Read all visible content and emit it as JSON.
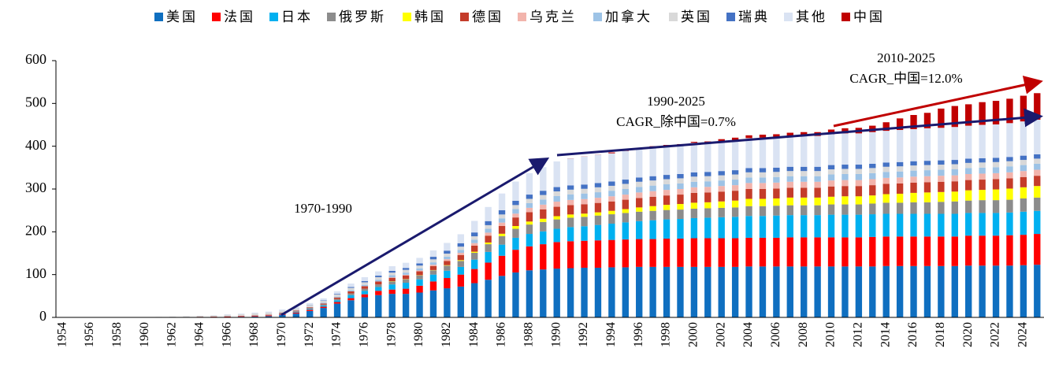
{
  "chart_data": {
    "type": "stacked_bar",
    "legend": "top",
    "categories": [
      "1954",
      null,
      "1956",
      null,
      "1958",
      null,
      "1960",
      null,
      "1962",
      null,
      "1964",
      null,
      "1966",
      null,
      "1968",
      null,
      "1970",
      null,
      "1972",
      null,
      "1974",
      null,
      "1976",
      null,
      "1978",
      null,
      "1980",
      null,
      "1982",
      null,
      "1984",
      null,
      "1986",
      null,
      "1988",
      null,
      "1990",
      null,
      "1992",
      null,
      "1994",
      null,
      "1996",
      null,
      "1998",
      null,
      "2000",
      null,
      "2002",
      null,
      "2004",
      null,
      "2006",
      null,
      "2008",
      null,
      "2010",
      null,
      "2012",
      null,
      "2014",
      null,
      "2016",
      null,
      "2018",
      null,
      "2020",
      null,
      "2022",
      null,
      "2024",
      null
    ],
    "ylim": [
      0,
      600
    ],
    "yticks": [
      0,
      100,
      200,
      300,
      400,
      500,
      600
    ],
    "annotations": [
      "1970-1990",
      "1990-2025",
      "CAGR_除中国=0.7%",
      "2010-2025",
      "CAGR_中国=12.0%"
    ],
    "series": [
      {
        "name": "美国",
        "color": "#0f6fc0",
        "values": [
          0,
          0,
          0,
          0,
          0.1,
          0.1,
          0.2,
          0.3,
          0.5,
          0.6,
          0.8,
          0.9,
          1,
          1.5,
          2,
          3,
          6,
          9,
          15,
          22,
          32,
          40,
          47,
          52,
          55,
          55,
          58,
          63,
          68,
          72,
          80,
          88,
          97,
          105,
          110,
          112,
          114,
          115,
          116,
          116,
          117,
          117,
          118,
          118,
          118,
          118,
          118,
          118,
          118,
          118,
          119,
          119,
          119,
          119,
          119,
          119,
          119,
          119,
          119,
          119,
          120,
          120,
          120,
          120,
          120,
          120,
          121,
          121,
          121,
          121,
          122,
          123
        ]
      },
      {
        "name": "法国",
        "color": "#ff0000",
        "values": [
          0,
          0,
          0,
          0,
          0,
          0,
          0.1,
          0.1,
          0.2,
          0.3,
          0.5,
          0.7,
          1,
          1.2,
          1.5,
          1.8,
          2,
          2.5,
          3,
          3,
          4,
          5,
          7,
          10,
          10,
          12,
          16,
          21,
          24,
          28,
          33,
          40,
          47,
          53,
          56,
          59,
          62,
          63,
          63,
          64,
          64,
          65,
          65,
          65,
          66,
          66,
          67,
          67,
          67,
          67,
          67,
          67,
          67,
          68,
          68,
          68,
          68,
          68,
          68,
          69,
          69,
          69,
          69,
          69,
          69,
          69,
          70,
          70,
          70,
          71,
          71,
          72
        ]
      },
      {
        "name": "日本",
        "color": "#00b0f0",
        "values": [
          0,
          0,
          0,
          0,
          0,
          0,
          0,
          0,
          0,
          0,
          0,
          0,
          0.2,
          0.2,
          0.2,
          0.2,
          1,
          1.5,
          2,
          3,
          4,
          7,
          8,
          9,
          12,
          14,
          15,
          16,
          17,
          18,
          22,
          25,
          26,
          28,
          29,
          30,
          31,
          33,
          34,
          36,
          38,
          40,
          42,
          44,
          45,
          46,
          47,
          48,
          49,
          50,
          51,
          51,
          52,
          52,
          52,
          52,
          53,
          53,
          53,
          53,
          53,
          53,
          53,
          53,
          53,
          53,
          53,
          53,
          53,
          53,
          54,
          54
        ]
      },
      {
        "name": "俄罗斯",
        "color": "#8c8c8c",
        "values": [
          0,
          0,
          0,
          0,
          0,
          0,
          0,
          0,
          0,
          0.1,
          0.3,
          0.4,
          0.5,
          0.6,
          0.8,
          1,
          1,
          1.2,
          1.5,
          2,
          3,
          4,
          5,
          6,
          7,
          8,
          9,
          10,
          12,
          14,
          16,
          18,
          20,
          21,
          22,
          22,
          22,
          22,
          22,
          22,
          22,
          22,
          22,
          22,
          22,
          22,
          22,
          22,
          22,
          22,
          23,
          23,
          23,
          23,
          23,
          23,
          24,
          24,
          24,
          25,
          26,
          26,
          27,
          27,
          28,
          29,
          29,
          30,
          30,
          30,
          31,
          31
        ]
      },
      {
        "name": "韩国",
        "color": "#ffff00",
        "values": [
          0,
          0,
          0,
          0,
          0,
          0,
          0,
          0,
          0,
          0,
          0,
          0,
          0,
          0,
          0,
          0,
          0,
          0,
          0,
          0,
          0,
          0,
          0,
          0,
          0.6,
          0.6,
          0.6,
          0.6,
          1,
          1.8,
          2.5,
          4,
          5.5,
          6.5,
          7,
          7.5,
          7.5,
          7.5,
          7.5,
          7.5,
          8,
          9,
          10,
          11,
          12,
          13,
          14,
          14,
          15,
          16,
          17,
          17,
          17,
          18,
          18,
          18,
          18,
          19,
          19,
          19,
          20,
          21,
          22,
          23,
          23,
          23,
          24,
          24,
          25,
          26,
          26,
          27
        ]
      },
      {
        "name": "德国",
        "color": "#c43c2a",
        "values": [
          0,
          0,
          0,
          0,
          0,
          0,
          0,
          0,
          0.02,
          0.02,
          0.05,
          0.1,
          0.3,
          0.3,
          0.5,
          0.7,
          1,
          1.5,
          2,
          2.5,
          3.5,
          5,
          6,
          7,
          8,
          8.5,
          9,
          9.5,
          10,
          12,
          14,
          16,
          18,
          20,
          22,
          22,
          22,
          22,
          22,
          22,
          22,
          22,
          22,
          22,
          22,
          22,
          23,
          23,
          23,
          23,
          23,
          23,
          23,
          23,
          23,
          23,
          24,
          24,
          24,
          24,
          24,
          24,
          24,
          24,
          24,
          24,
          24,
          24,
          24,
          24,
          24,
          24
        ]
      },
      {
        "name": "乌克兰",
        "color": "#f2b4ac",
        "values": [
          0,
          0,
          0,
          0,
          0,
          0,
          0,
          0,
          0,
          0,
          0,
          0,
          0,
          0,
          0,
          0,
          0,
          0,
          0,
          0,
          0,
          0,
          0,
          0,
          1,
          1.5,
          2,
          3,
          4,
          5,
          6,
          7,
          8,
          9,
          10,
          11,
          12,
          12,
          12,
          12,
          12,
          12,
          13,
          13,
          13,
          13,
          13,
          13,
          13,
          13,
          14,
          14,
          14,
          14,
          14,
          14,
          14,
          14,
          14,
          14,
          14,
          14,
          14,
          14,
          14,
          14,
          14,
          14,
          14,
          14,
          14,
          14
        ]
      },
      {
        "name": "加拿大",
        "color": "#9dc3e6",
        "values": [
          0,
          0,
          0,
          0,
          0,
          0,
          0,
          0,
          0.02,
          0.02,
          0.02,
          0.02,
          0.2,
          0.2,
          0.2,
          0.3,
          0.5,
          0.8,
          1,
          1.5,
          2,
          2.5,
          3,
          4,
          5,
          5,
          5,
          5.5,
          6,
          7,
          8,
          9,
          10,
          10.5,
          11,
          12,
          13,
          13,
          13,
          13,
          13,
          13,
          13,
          13,
          13,
          13,
          13,
          13,
          13,
          13,
          13,
          13,
          13,
          13,
          13,
          13,
          14,
          14,
          14,
          14,
          14,
          14,
          14,
          14,
          14,
          14,
          14,
          14,
          14,
          14,
          14,
          14
        ]
      },
      {
        "name": "英国",
        "color": "#d9d9d9",
        "values": [
          0,
          0,
          0.05,
          0.1,
          0.2,
          0.3,
          0.5,
          0.7,
          1,
          1.5,
          2,
          2.5,
          3,
          3.5,
          4,
          4,
          4,
          4.2,
          4.5,
          4.5,
          5,
          5.5,
          6,
          6,
          6,
          6.5,
          6.5,
          7,
          7,
          7.5,
          8,
          8.5,
          9,
          9.5,
          10,
          10.5,
          11,
          11,
          11,
          11.5,
          11.5,
          12,
          12,
          12,
          12,
          12,
          12,
          12,
          12,
          12,
          12,
          12,
          12,
          12,
          12,
          12,
          12,
          12,
          12,
          12,
          12,
          12,
          12,
          12,
          12,
          12,
          12,
          12,
          12,
          12,
          12,
          12
        ]
      },
      {
        "name": "瑞典",
        "color": "#4472c4",
        "values": [
          0,
          0,
          0,
          0,
          0,
          0,
          0,
          0,
          0,
          0,
          0.01,
          0.01,
          0.01,
          0.01,
          0.01,
          0.01,
          0.01,
          0.2,
          0.5,
          1,
          1.5,
          2,
          3,
          3.5,
          4,
          4.5,
          5,
          6,
          7,
          8,
          9,
          9.5,
          10,
          10,
          10,
          10,
          10,
          10,
          10,
          10,
          10,
          10,
          10,
          10,
          10,
          10,
          10,
          10,
          10,
          10,
          10,
          10,
          10,
          10,
          10,
          10,
          10,
          10,
          10,
          10,
          10,
          10,
          10,
          10,
          10,
          10,
          10,
          10,
          10,
          10,
          10,
          10
        ]
      },
      {
        "name": "其他",
        "color": "#dae3f3",
        "values": [
          0,
          0,
          0,
          0,
          0,
          0,
          0,
          0,
          0.1,
          0.2,
          0.3,
          0.5,
          1,
          1.5,
          2,
          2.5,
          3,
          3.5,
          4,
          5,
          6,
          8,
          9,
          10,
          11,
          12,
          13,
          15,
          18,
          21,
          27,
          33,
          39,
          45,
          50,
          55,
          60,
          63,
          65,
          66,
          66,
          67,
          67,
          68,
          68,
          68,
          69,
          69,
          70,
          70,
          70,
          71,
          71,
          71,
          72,
          72,
          72,
          73,
          73,
          74,
          74,
          75,
          75,
          76,
          76,
          77,
          77,
          78,
          78,
          79,
          80,
          81
        ]
      },
      {
        "name": "中国",
        "color": "#c00000",
        "values": [
          0,
          0,
          0,
          0,
          0,
          0,
          0,
          0,
          0,
          0,
          0,
          0,
          0,
          0,
          0,
          0,
          0,
          0,
          0,
          0,
          0,
          0,
          0,
          0,
          0,
          0,
          0,
          0,
          0,
          0,
          0,
          0,
          0,
          0,
          0,
          0,
          0,
          0.3,
          0.3,
          0.3,
          2,
          2,
          2,
          2,
          2,
          2,
          2.2,
          2.2,
          4.5,
          6,
          6.5,
          7,
          7,
          8.5,
          9,
          9,
          11,
          12,
          13,
          15,
          20,
          27,
          33,
          36,
          45,
          49,
          50,
          53,
          55,
          57,
          60,
          62
        ]
      }
    ]
  }
}
